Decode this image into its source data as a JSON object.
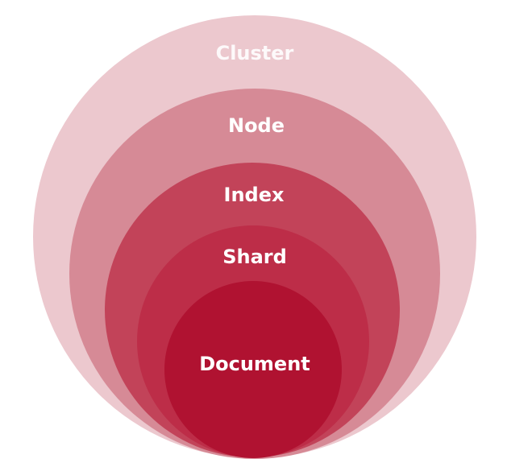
{
  "diagram": {
    "layers": [
      {
        "label": "Cluster",
        "color": "#ecc8ce"
      },
      {
        "label": "Node",
        "color": "#d68a96"
      },
      {
        "label": "Index",
        "color": "#c24359"
      },
      {
        "label": "Shard",
        "color": "#bd2d48"
      },
      {
        "label": "Document",
        "color": "#b01231"
      }
    ]
  }
}
